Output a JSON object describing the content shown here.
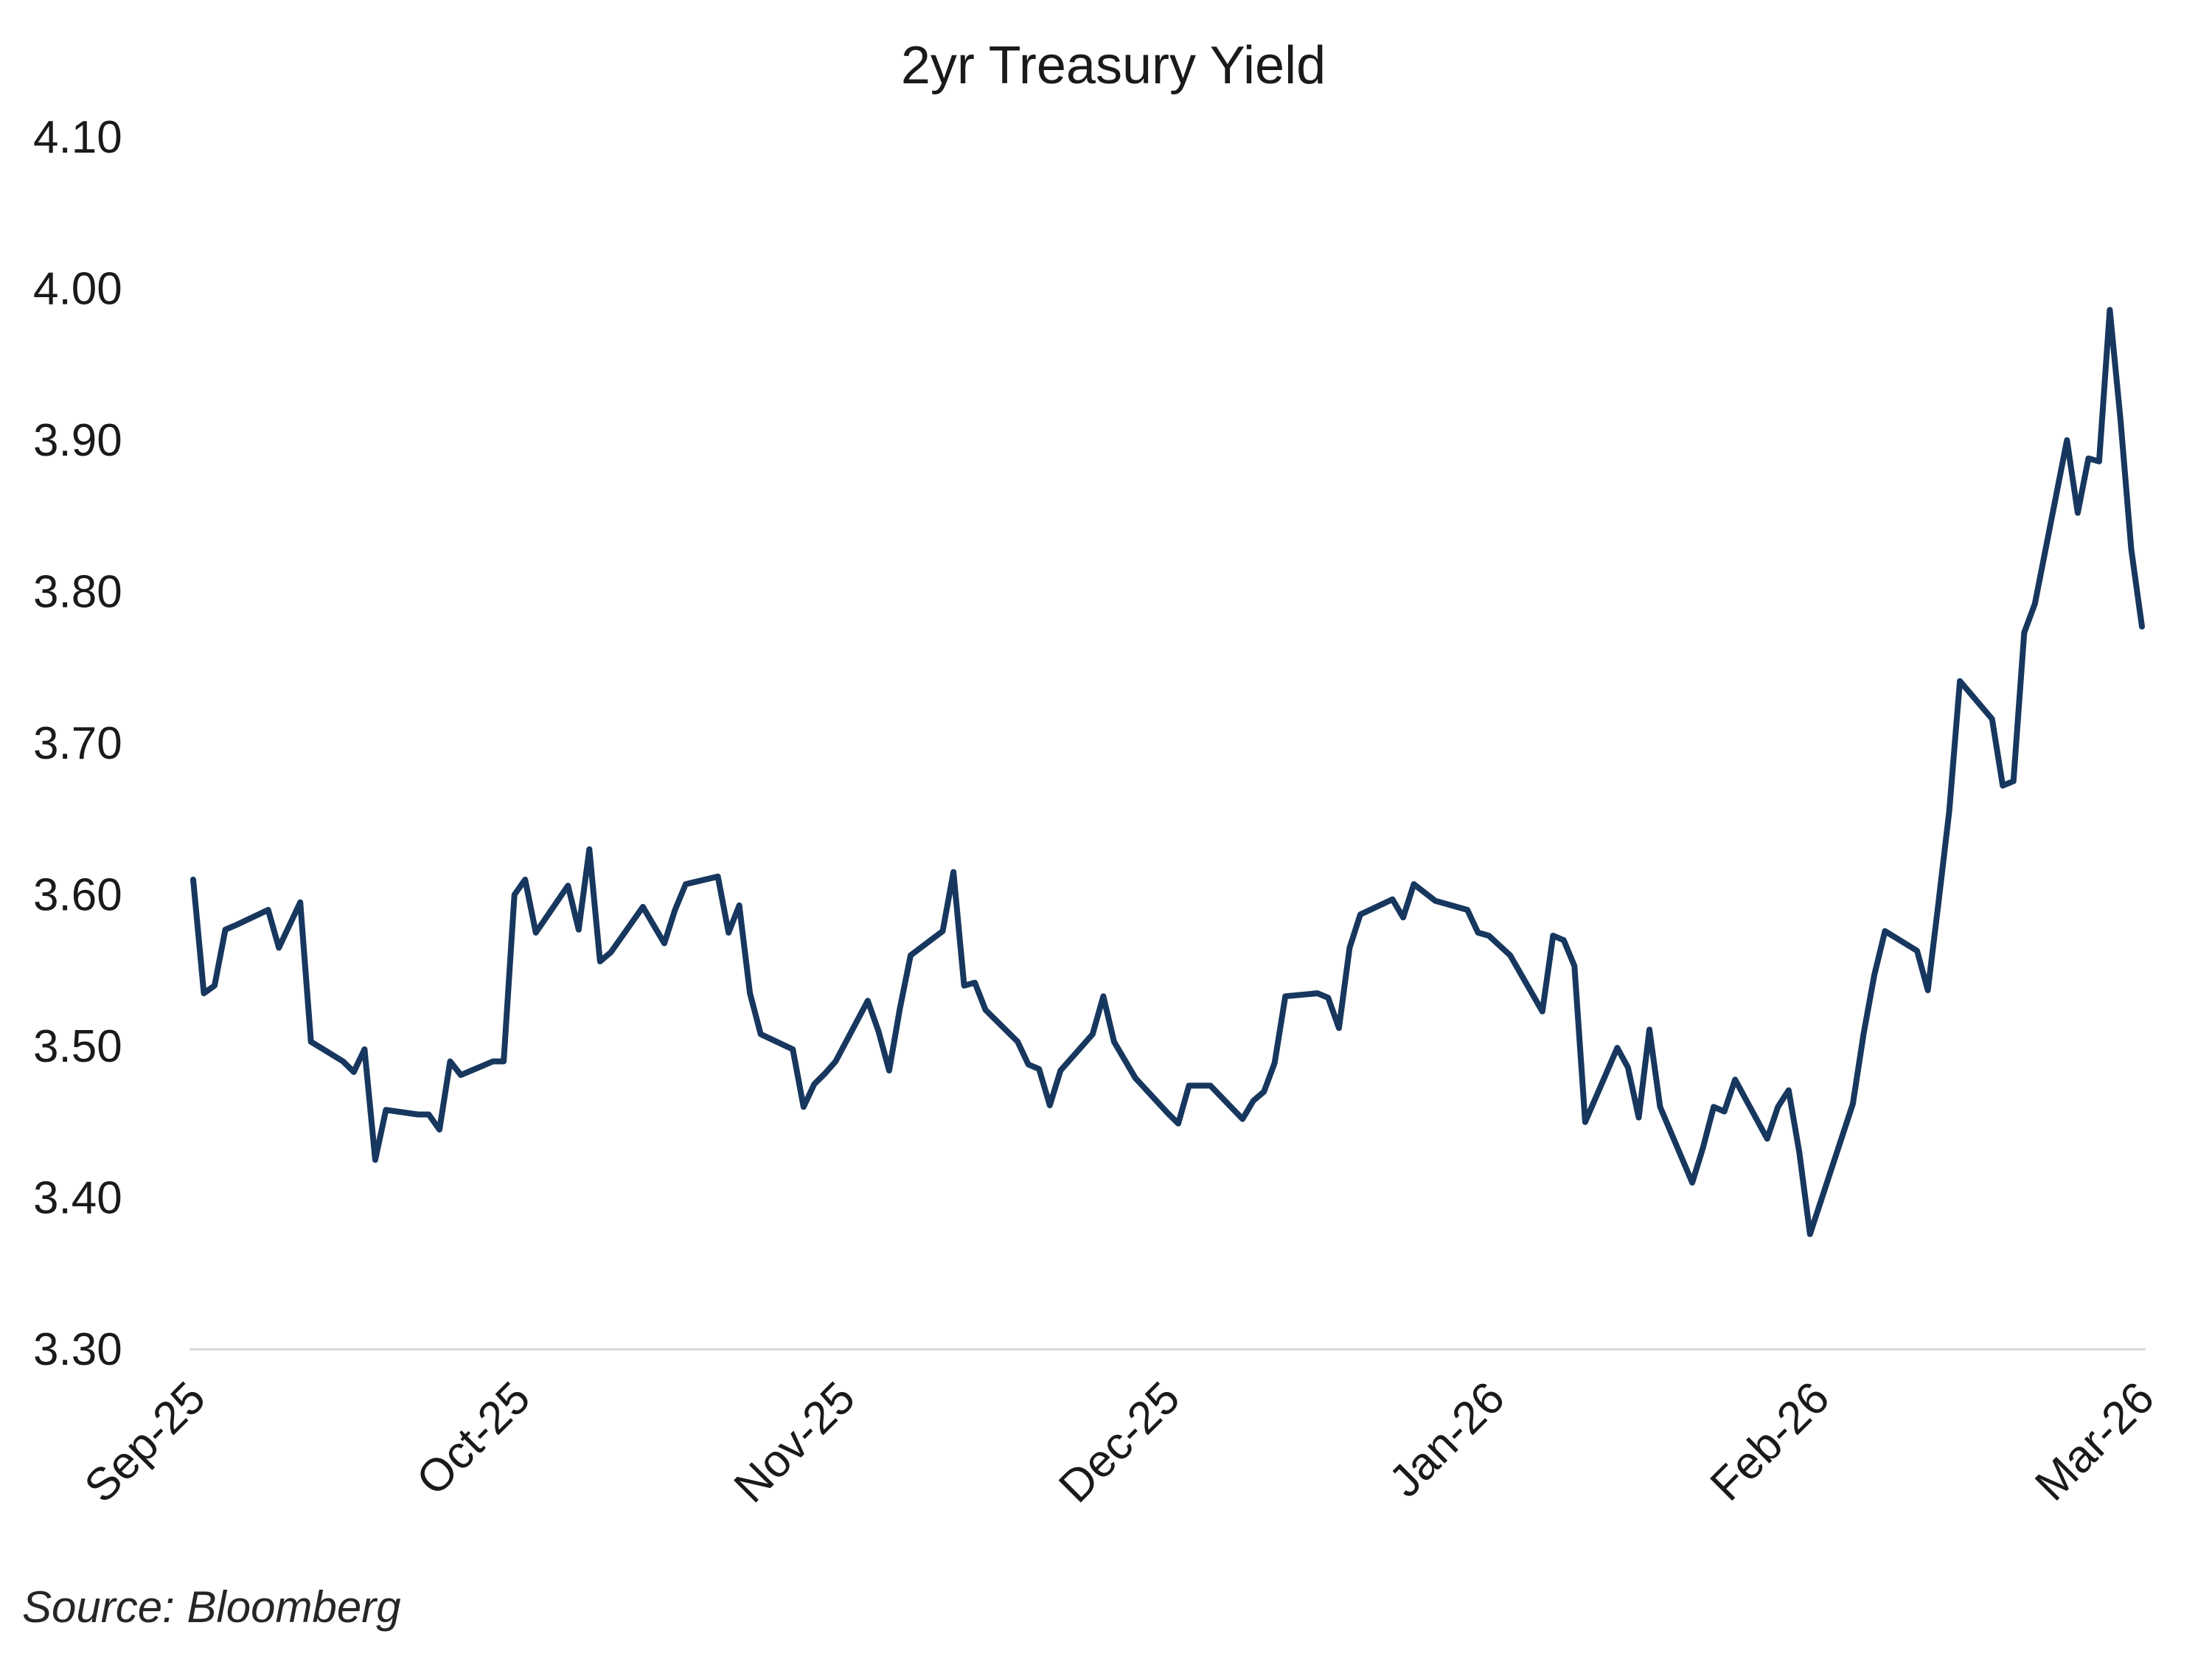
{
  "chart_data": {
    "type": "line",
    "title": "2yr Treasury Yield",
    "xlabel": "",
    "ylabel": "",
    "ylim": [
      3.3,
      4.1
    ],
    "yticks": [
      "3.30",
      "3.40",
      "3.50",
      "3.60",
      "3.70",
      "3.80",
      "3.90",
      "4.00",
      "4.10"
    ],
    "x_tick_labels": [
      "Sep-25",
      "Oct-25",
      "Nov-25",
      "Dec-25",
      "Jan-26",
      "Feb-26",
      "Mar-26"
    ],
    "grid": false,
    "legend": "none",
    "line_color": "#17375e",
    "series": [
      {
        "points": [
          [
            "2025-09-01",
            3.61
          ],
          [
            "2025-09-02",
            3.535
          ],
          [
            "2025-09-03",
            3.54
          ],
          [
            "2025-09-04",
            3.577
          ],
          [
            "2025-09-05",
            3.58
          ],
          [
            "2025-09-08",
            3.59
          ],
          [
            "2025-09-09",
            3.565
          ],
          [
            "2025-09-10",
            3.58
          ],
          [
            "2025-09-11",
            3.595
          ],
          [
            "2025-09-12",
            3.503
          ],
          [
            "2025-09-15",
            3.49
          ],
          [
            "2025-09-16",
            3.483
          ],
          [
            "2025-09-17",
            3.498
          ],
          [
            "2025-09-18",
            3.425
          ],
          [
            "2025-09-19",
            3.458
          ],
          [
            "2025-09-22",
            3.455
          ],
          [
            "2025-09-23",
            3.455
          ],
          [
            "2025-09-24",
            3.445
          ],
          [
            "2025-09-25",
            3.49
          ],
          [
            "2025-09-26",
            3.481
          ],
          [
            "2025-09-29",
            3.49
          ],
          [
            "2025-09-30",
            3.49
          ],
          [
            "2025-10-01",
            3.6
          ],
          [
            "2025-10-02",
            3.61
          ],
          [
            "2025-10-03",
            3.575
          ],
          [
            "2025-10-06",
            3.606
          ],
          [
            "2025-10-07",
            3.577
          ],
          [
            "2025-10-08",
            3.63
          ],
          [
            "2025-10-09",
            3.556
          ],
          [
            "2025-10-10",
            3.562
          ],
          [
            "2025-10-13",
            3.592
          ],
          [
            "2025-10-14",
            3.58
          ],
          [
            "2025-10-15",
            3.568
          ],
          [
            "2025-10-16",
            3.59
          ],
          [
            "2025-10-17",
            3.607
          ],
          [
            "2025-10-20",
            3.612
          ],
          [
            "2025-10-21",
            3.575
          ],
          [
            "2025-10-22",
            3.593
          ],
          [
            "2025-10-23",
            3.535
          ],
          [
            "2025-10-24",
            3.508
          ],
          [
            "2025-10-27",
            3.498
          ],
          [
            "2025-10-28",
            3.46
          ],
          [
            "2025-10-29",
            3.475
          ],
          [
            "2025-10-30",
            3.482
          ],
          [
            "2025-10-31",
            3.49
          ],
          [
            "2025-11-03",
            3.53
          ],
          [
            "2025-11-04",
            3.51
          ],
          [
            "2025-11-05",
            3.484
          ],
          [
            "2025-11-06",
            3.525
          ],
          [
            "2025-11-07",
            3.56
          ],
          [
            "2025-11-10",
            3.576
          ],
          [
            "2025-11-11",
            3.615
          ],
          [
            "2025-11-12",
            3.54
          ],
          [
            "2025-11-13",
            3.542
          ],
          [
            "2025-11-14",
            3.524
          ],
          [
            "2025-11-17",
            3.503
          ],
          [
            "2025-11-18",
            3.488
          ],
          [
            "2025-11-19",
            3.485
          ],
          [
            "2025-11-20",
            3.461
          ],
          [
            "2025-11-21",
            3.484
          ],
          [
            "2025-11-24",
            3.508
          ],
          [
            "2025-11-25",
            3.533
          ],
          [
            "2025-11-26",
            3.503
          ],
          [
            "2025-11-28",
            3.479
          ],
          [
            "2025-12-01",
            3.456
          ],
          [
            "2025-12-02",
            3.449
          ],
          [
            "2025-12-03",
            3.474
          ],
          [
            "2025-12-04",
            3.474
          ],
          [
            "2025-12-05",
            3.474
          ],
          [
            "2025-12-08",
            3.452
          ],
          [
            "2025-12-09",
            3.464
          ],
          [
            "2025-12-10",
            3.47
          ],
          [
            "2025-12-11",
            3.489
          ],
          [
            "2025-12-12",
            3.533
          ],
          [
            "2025-12-15",
            3.535
          ],
          [
            "2025-12-16",
            3.532
          ],
          [
            "2025-12-17",
            3.512
          ],
          [
            "2025-12-18",
            3.565
          ],
          [
            "2025-12-19",
            3.587
          ],
          [
            "2025-12-22",
            3.597
          ],
          [
            "2025-12-23",
            3.585
          ],
          [
            "2025-12-24",
            3.607
          ],
          [
            "2025-12-26",
            3.596
          ],
          [
            "2025-12-29",
            3.59
          ],
          [
            "2025-12-30",
            3.575
          ],
          [
            "2025-12-31",
            3.573
          ],
          [
            "2026-01-02",
            3.56
          ],
          [
            "2026-01-05",
            3.523
          ],
          [
            "2026-01-06",
            3.573
          ],
          [
            "2026-01-07",
            3.57
          ],
          [
            "2026-01-08",
            3.553
          ],
          [
            "2026-01-09",
            3.45
          ],
          [
            "2026-01-12",
            3.499
          ],
          [
            "2026-01-13",
            3.486
          ],
          [
            "2026-01-14",
            3.453
          ],
          [
            "2026-01-15",
            3.511
          ],
          [
            "2026-01-16",
            3.46
          ],
          [
            "2026-01-19",
            3.41
          ],
          [
            "2026-01-20",
            3.433
          ],
          [
            "2026-01-21",
            3.46
          ],
          [
            "2026-01-22",
            3.457
          ],
          [
            "2026-01-23",
            3.478
          ],
          [
            "2026-01-26",
            3.439
          ],
          [
            "2026-01-27",
            3.46
          ],
          [
            "2026-01-28",
            3.471
          ],
          [
            "2026-01-29",
            3.43
          ],
          [
            "2026-01-30",
            3.376
          ],
          [
            "2026-02-03",
            3.462
          ],
          [
            "2026-02-04",
            3.508
          ],
          [
            "2026-02-05",
            3.547
          ],
          [
            "2026-02-06",
            3.576
          ],
          [
            "2026-02-09",
            3.563
          ],
          [
            "2026-02-10",
            3.537
          ],
          [
            "2026-02-11",
            3.595
          ],
          [
            "2026-02-12",
            3.655
          ],
          [
            "2026-02-13",
            3.741
          ],
          [
            "2026-02-16",
            3.716
          ],
          [
            "2026-02-17",
            3.672
          ],
          [
            "2026-02-18",
            3.675
          ],
          [
            "2026-02-19",
            3.773
          ],
          [
            "2026-02-20",
            3.792
          ],
          [
            "2026-02-23",
            3.9
          ],
          [
            "2026-02-24",
            3.852
          ],
          [
            "2026-02-25",
            3.888
          ],
          [
            "2026-02-26",
            3.886
          ],
          [
            "2026-02-27",
            3.986
          ],
          [
            "2026-02-28",
            3.913
          ],
          [
            "2026-03-01",
            3.828
          ],
          [
            "2026-03-02",
            3.777
          ]
        ]
      }
    ]
  },
  "footer": {
    "source": "Source: Bloomberg"
  }
}
